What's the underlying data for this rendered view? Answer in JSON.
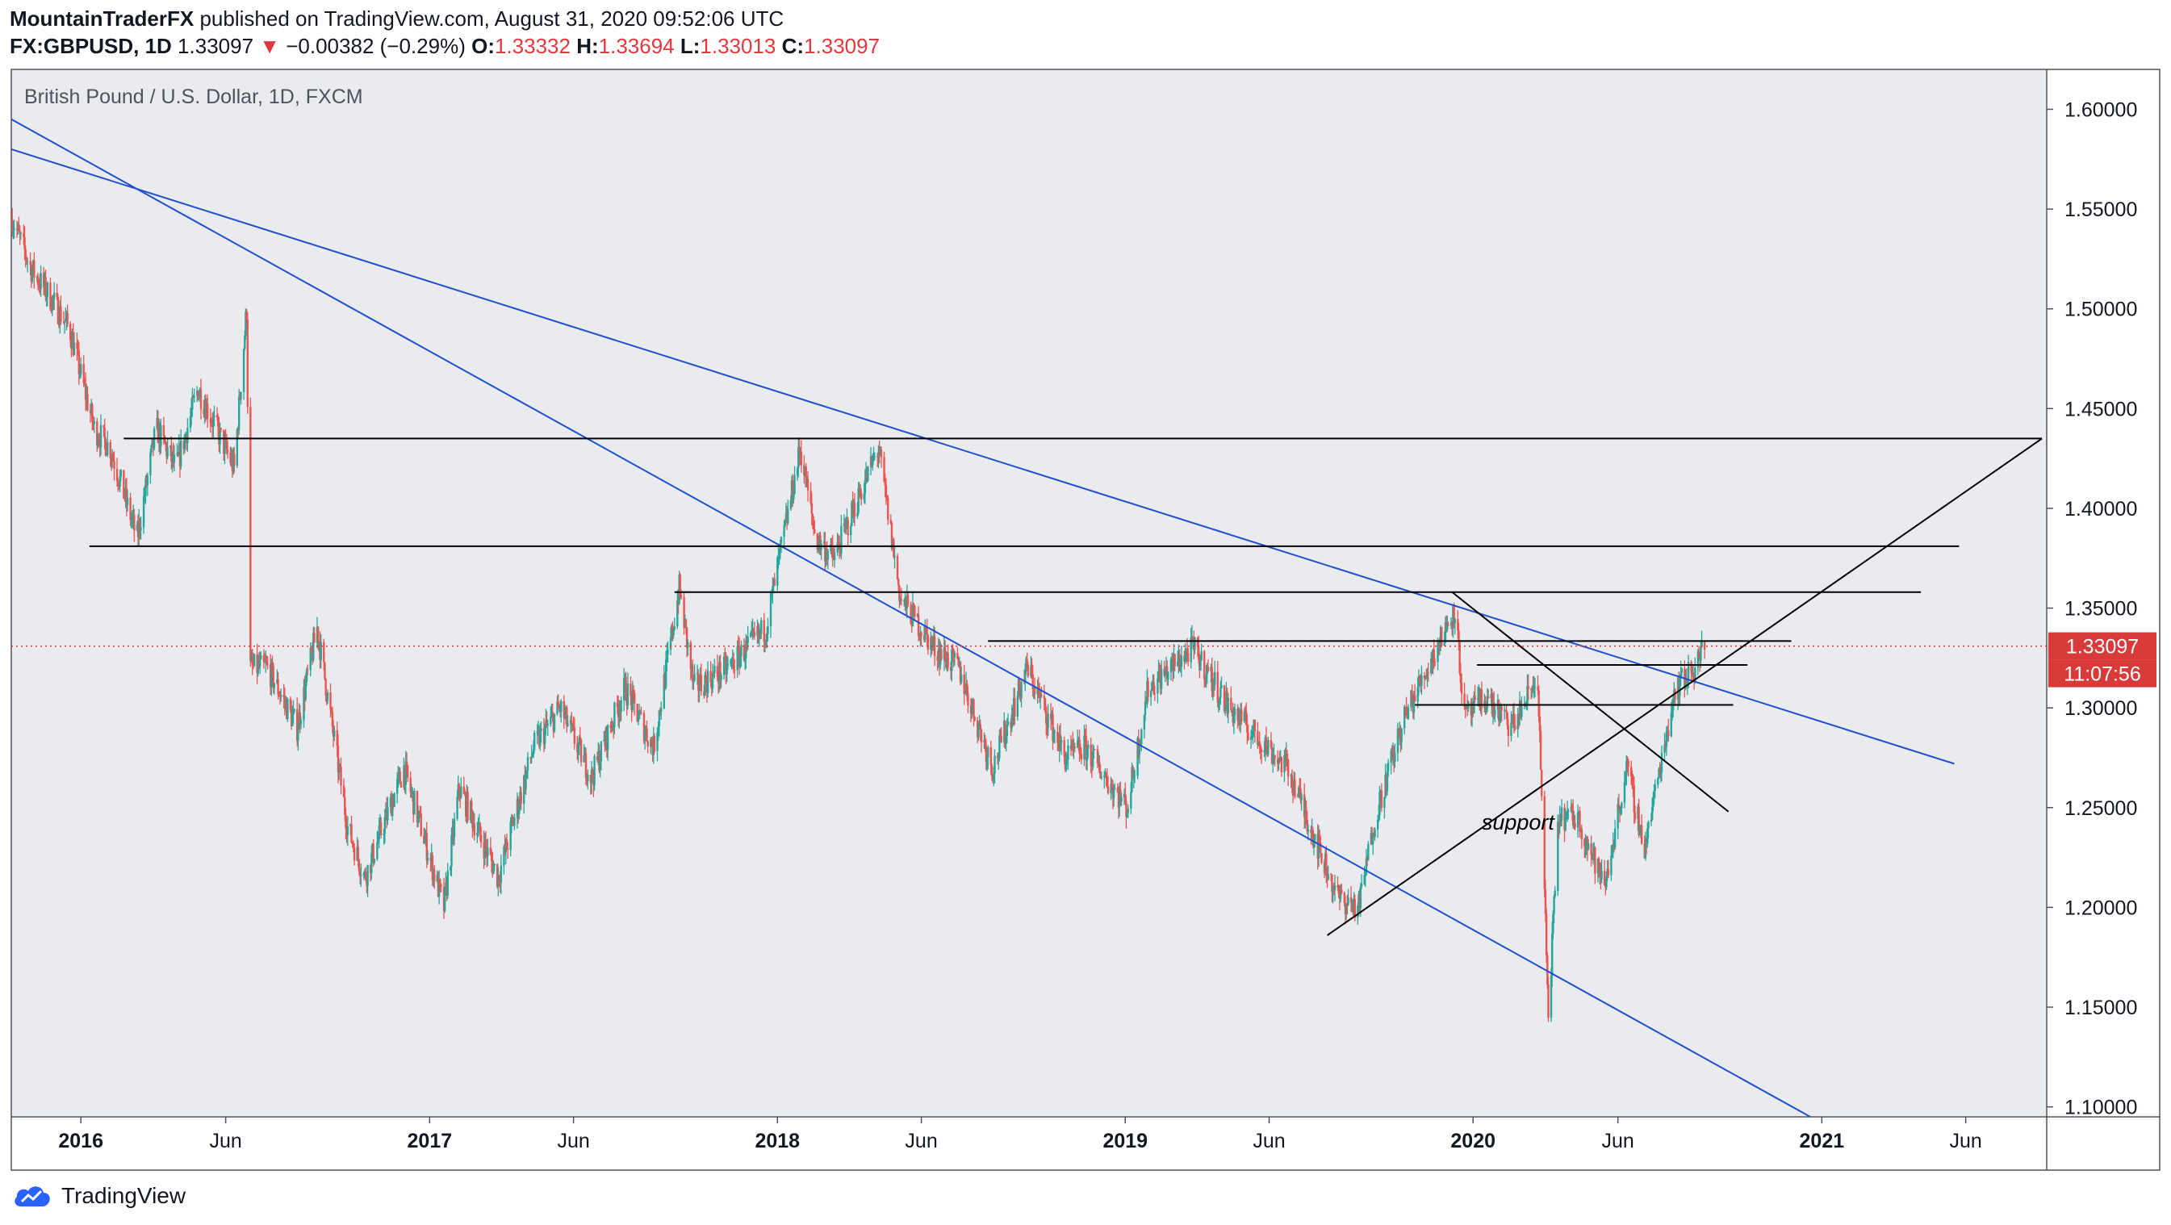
{
  "header": {
    "author": "MountainTraderFX",
    "published_text": " published on TradingView.com, August 31, 2020 09:52:06 UTC",
    "symbol": "FX:GBPUSD, 1D",
    "last": "1.33097",
    "change_arrow": "▼",
    "change": "−0.00382 (−0.29%)",
    "o_label": "O:",
    "o_value": "1.33332",
    "h_label": "H:",
    "h_value": "1.33694",
    "l_label": "L:",
    "l_value": "1.33013",
    "c_label": "C:",
    "c_value": "1.33097"
  },
  "footer": {
    "brand": "TradingView",
    "icon": "tradingview-cloud-icon"
  },
  "colors": {
    "up": "#26a69a",
    "down": "#ef5350",
    "trendline": "#1e4fcf",
    "drawing": "#000000",
    "price_label": "#d83a3a",
    "background": "#e9ebef"
  },
  "chart_data": {
    "type": "candlestick",
    "title": "British Pound / U.S. Dollar, 1D, FXCM",
    "ylim": [
      1.095,
      1.62
    ],
    "y_ticks": [
      "1.10000",
      "1.15000",
      "1.20000",
      "1.25000",
      "1.30000",
      "1.35000",
      "1.40000",
      "1.45000",
      "1.50000",
      "1.55000",
      "1.60000"
    ],
    "y_tick_values": [
      1.1,
      1.15,
      1.2,
      1.25,
      1.3,
      1.35,
      1.4,
      1.45,
      1.5,
      1.55,
      1.6
    ],
    "x_range": [
      "2015-10-20",
      "2021-08-25"
    ],
    "x_ticks": [
      {
        "label": "2016",
        "date": "2016-01-01",
        "bold": true
      },
      {
        "label": "Jun",
        "date": "2016-06-01",
        "bold": false
      },
      {
        "label": "2017",
        "date": "2017-01-01",
        "bold": true
      },
      {
        "label": "Jun",
        "date": "2017-06-01",
        "bold": false
      },
      {
        "label": "2018",
        "date": "2018-01-01",
        "bold": true
      },
      {
        "label": "Jun",
        "date": "2018-06-01",
        "bold": false
      },
      {
        "label": "2019",
        "date": "2019-01-01",
        "bold": true
      },
      {
        "label": "Jun",
        "date": "2019-06-01",
        "bold": false
      },
      {
        "label": "2020",
        "date": "2020-01-01",
        "bold": true
      },
      {
        "label": "Jun",
        "date": "2020-06-01",
        "bold": false
      },
      {
        "label": "2021",
        "date": "2021-01-01",
        "bold": true
      },
      {
        "label": "Jun",
        "date": "2021-06-01",
        "bold": false
      }
    ],
    "price_path": [
      [
        "2015-10-21",
        1.545
      ],
      [
        "2015-11-10",
        1.52
      ],
      [
        "2015-12-01",
        1.505
      ],
      [
        "2015-12-20",
        1.49
      ],
      [
        "2016-01-15",
        1.44
      ],
      [
        "2016-02-01",
        1.43
      ],
      [
        "2016-02-29",
        1.385
      ],
      [
        "2016-03-20",
        1.44
      ],
      [
        "2016-04-10",
        1.42
      ],
      [
        "2016-05-03",
        1.46
      ],
      [
        "2016-06-10",
        1.42
      ],
      [
        "2016-06-23",
        1.5
      ],
      [
        "2016-06-27",
        1.32
      ],
      [
        "2016-07-15",
        1.32
      ],
      [
        "2016-08-15",
        1.29
      ],
      [
        "2016-09-05",
        1.34
      ],
      [
        "2016-10-07",
        1.24
      ],
      [
        "2016-10-25",
        1.215
      ],
      [
        "2016-12-05",
        1.27
      ],
      [
        "2017-01-16",
        1.2
      ],
      [
        "2017-02-01",
        1.26
      ],
      [
        "2017-03-14",
        1.215
      ],
      [
        "2017-04-20",
        1.28
      ],
      [
        "2017-05-18",
        1.3
      ],
      [
        "2017-06-20",
        1.265
      ],
      [
        "2017-07-25",
        1.31
      ],
      [
        "2017-08-24",
        1.28
      ],
      [
        "2017-09-20",
        1.36
      ],
      [
        "2017-10-05",
        1.31
      ],
      [
        "2017-11-10",
        1.32
      ],
      [
        "2017-12-20",
        1.34
      ],
      [
        "2018-01-25",
        1.43
      ],
      [
        "2018-02-10",
        1.385
      ],
      [
        "2018-03-01",
        1.375
      ],
      [
        "2018-04-17",
        1.43
      ],
      [
        "2018-05-10",
        1.355
      ],
      [
        "2018-06-15",
        1.33
      ],
      [
        "2018-07-10",
        1.32
      ],
      [
        "2018-08-15",
        1.27
      ],
      [
        "2018-09-20",
        1.32
      ],
      [
        "2018-10-30",
        1.275
      ],
      [
        "2018-11-20",
        1.28
      ],
      [
        "2019-01-03",
        1.25
      ],
      [
        "2019-01-25",
        1.31
      ],
      [
        "2019-03-13",
        1.33
      ],
      [
        "2019-04-20",
        1.3
      ],
      [
        "2019-06-20",
        1.27
      ],
      [
        "2019-07-15",
        1.24
      ],
      [
        "2019-08-12",
        1.205
      ],
      [
        "2019-09-03",
        1.2
      ],
      [
        "2019-09-20",
        1.245
      ],
      [
        "2019-10-21",
        1.295
      ],
      [
        "2019-12-13",
        1.35
      ],
      [
        "2019-12-23",
        1.295
      ],
      [
        "2020-01-15",
        1.305
      ],
      [
        "2020-02-10",
        1.29
      ],
      [
        "2020-03-09",
        1.315
      ],
      [
        "2020-03-20",
        1.145
      ],
      [
        "2020-03-31",
        1.245
      ],
      [
        "2020-04-20",
        1.245
      ],
      [
        "2020-05-18",
        1.21
      ],
      [
        "2020-06-10",
        1.27
      ],
      [
        "2020-06-29",
        1.23
      ],
      [
        "2020-07-31",
        1.31
      ],
      [
        "2020-08-20",
        1.32
      ],
      [
        "2020-08-31",
        1.331
      ]
    ],
    "blue_trendlines": [
      {
        "x1": "2015-10-20",
        "y1": 1.595,
        "x2": "2020-12-20",
        "y2": 1.095
      },
      {
        "x1": "2015-10-20",
        "y1": 1.58,
        "x2": "2021-05-20",
        "y2": 1.272
      }
    ],
    "horizontal_levels": [
      {
        "price": 1.435,
        "from": "2016-02-15",
        "to": "2021-08-20"
      },
      {
        "price": 1.381,
        "from": "2016-01-10",
        "to": "2021-05-25"
      },
      {
        "price": 1.358,
        "from": "2017-09-15",
        "to": "2021-04-15"
      },
      {
        "price": 1.3335,
        "from": "2018-08-10",
        "to": "2020-11-30"
      },
      {
        "price": 1.3215,
        "from": "2020-01-05",
        "to": "2020-10-15"
      },
      {
        "price": 1.3015,
        "from": "2019-11-01",
        "to": "2020-09-30"
      }
    ],
    "black_diagonals": [
      {
        "x1": "2019-08-01",
        "y1": 1.186,
        "x2": "2021-08-20",
        "y2": 1.435
      },
      {
        "x1": "2019-12-10",
        "y1": 1.358,
        "x2": "2020-09-25",
        "y2": 1.248
      }
    ],
    "annotations": [
      {
        "text": "support",
        "date": "2020-01-10",
        "price": 1.239
      }
    ],
    "current_price": {
      "value": 1.33097,
      "label": "1.33097",
      "countdown": "11:07:56"
    }
  }
}
